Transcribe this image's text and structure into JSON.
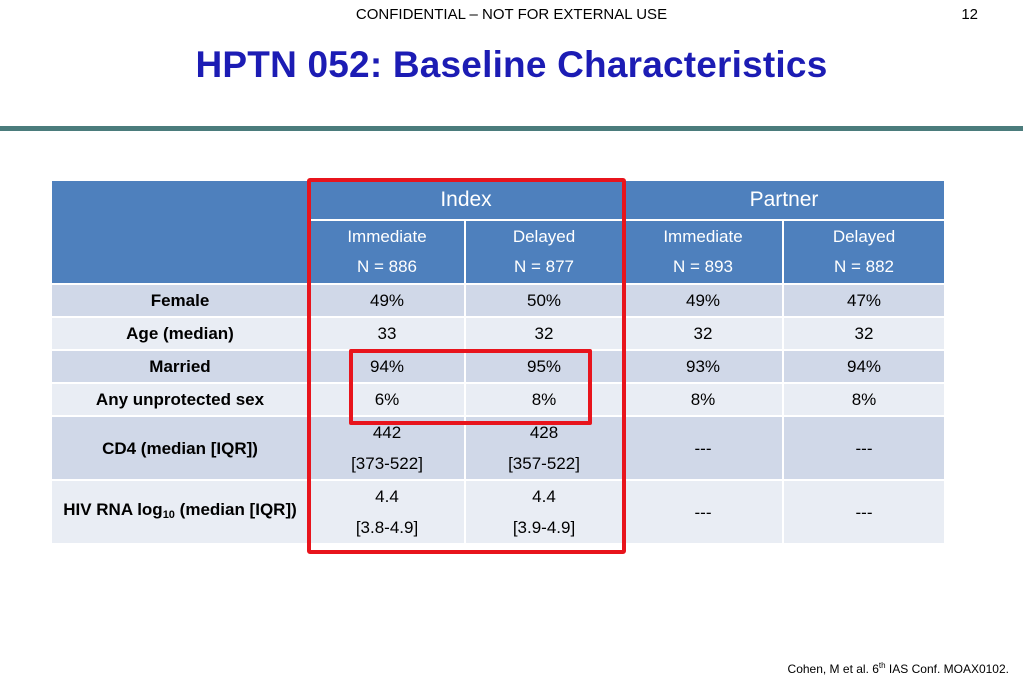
{
  "header": {
    "confidential": "CONFIDENTIAL – NOT FOR EXTERNAL USE",
    "page_number": "12"
  },
  "title": "HPTN 052: Baseline Characteristics",
  "table": {
    "groups": [
      "Index",
      "Partner"
    ],
    "columns": [
      {
        "arm": "Immediate",
        "n": "N = 886"
      },
      {
        "arm": "Delayed",
        "n": "N = 877"
      },
      {
        "arm": "Immediate",
        "n": "N = 893"
      },
      {
        "arm": "Delayed",
        "n": "N = 882"
      }
    ],
    "rows": [
      {
        "label": "Female",
        "cells": [
          [
            "49%"
          ],
          [
            "50%"
          ],
          [
            "49%"
          ],
          [
            "47%"
          ]
        ]
      },
      {
        "label": "Age (median)",
        "cells": [
          [
            "33"
          ],
          [
            "32"
          ],
          [
            "32"
          ],
          [
            "32"
          ]
        ]
      },
      {
        "label": "Married",
        "cells": [
          [
            "94%"
          ],
          [
            "95%"
          ],
          [
            "93%"
          ],
          [
            "94%"
          ]
        ]
      },
      {
        "label": "Any unprotected sex",
        "cells": [
          [
            "6%"
          ],
          [
            "8%"
          ],
          [
            "8%"
          ],
          [
            "8%"
          ]
        ]
      },
      {
        "label": "CD4 (median [IQR])",
        "cells": [
          [
            "442",
            "[373-522]"
          ],
          [
            "428",
            "[357-522]"
          ],
          [
            "---"
          ],
          [
            "---"
          ]
        ]
      },
      {
        "label_main": "HIV RNA log",
        "label_sub": "10",
        "label_rest": " (median [IQR])",
        "cells": [
          [
            "4.4",
            "[3.8-4.9]"
          ],
          [
            "4.4",
            "[3.9-4.9]"
          ],
          [
            "---"
          ],
          [
            "---"
          ]
        ]
      }
    ]
  },
  "highlight_color": "#e8141c",
  "citation": {
    "prefix": "Cohen, M et al.  6",
    "superscript": "th",
    "suffix": " IAS Conf. MOAX0102."
  }
}
